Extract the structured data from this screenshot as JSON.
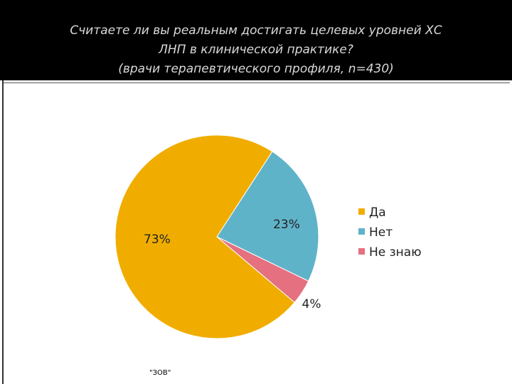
{
  "title": {
    "line1": "Считаете ли вы реальным достигать целевых уровней ХС",
    "line2": "ЛНП в клинической практике?",
    "line3": "(врачи терапевтического профиля, n=430)"
  },
  "footnote": "\"ЗОВ\"",
  "colors": {
    "header_bg": "#000000",
    "title_text": "#d9d9d9"
  },
  "chart_data": {
    "type": "pie",
    "title": "Считаете ли вы реальным достигать целевых уровней ХС ЛНП в клинической практике? (врачи терапевтического профиля, n=430)",
    "legend_position": "right",
    "slices": [
      {
        "label": "Да",
        "value": 73,
        "value_label": "73%",
        "color": "#f0ad00"
      },
      {
        "label": "Нет",
        "value": 23,
        "value_label": "23%",
        "color": "#5fb3c9"
      },
      {
        "label": "Не знаю",
        "value": 4,
        "value_label": "4%",
        "color": "#e5707f"
      }
    ]
  }
}
